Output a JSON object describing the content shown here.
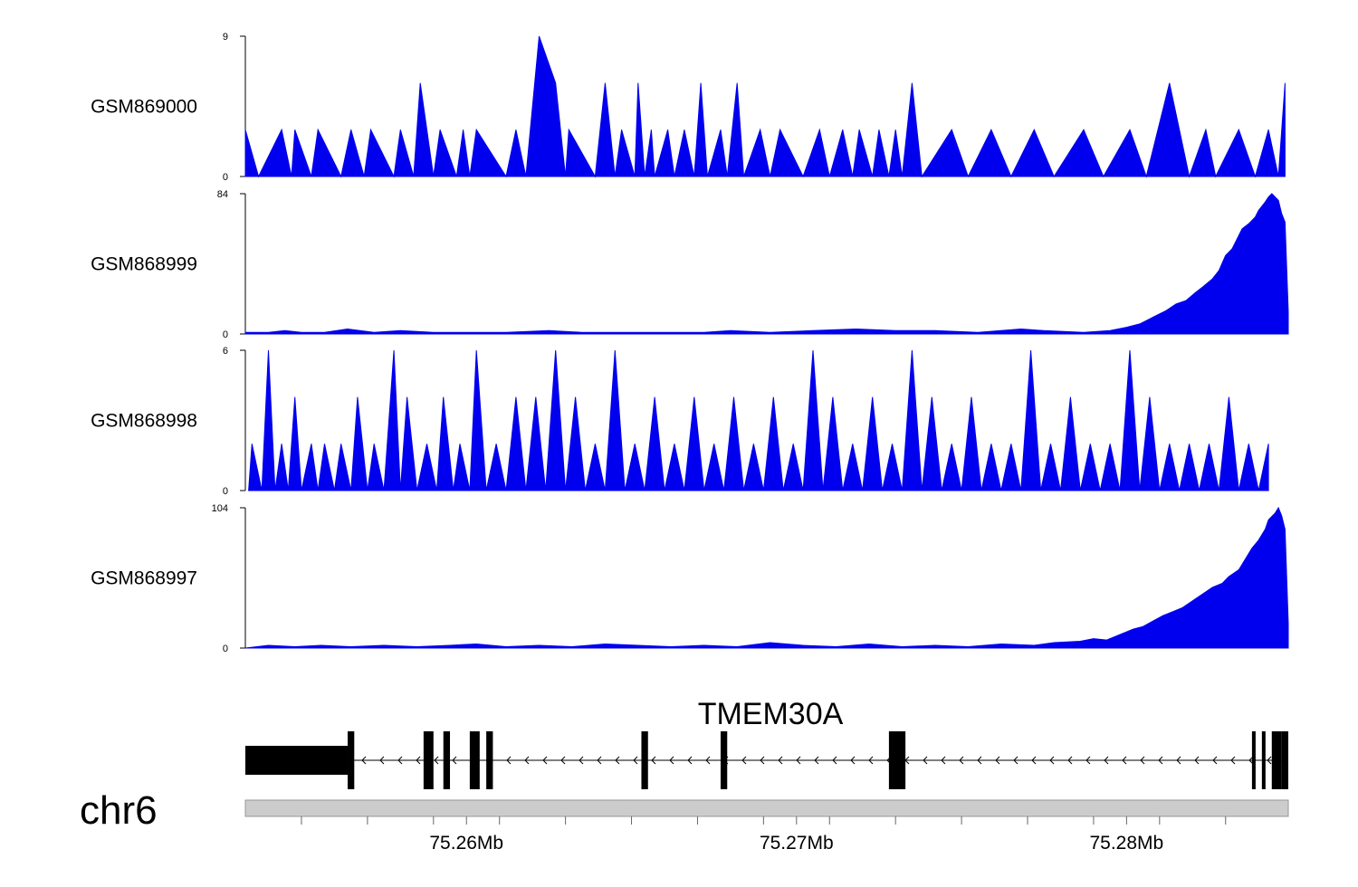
{
  "chart_data": {
    "type": "area",
    "colors": {
      "signal": "#0000ee",
      "axis": "#000000",
      "gene": "#000000",
      "ideogram": "#cccccc"
    },
    "x_axis": {
      "chromosome": "chr6",
      "range_mb": [
        75.2533,
        75.2849
      ],
      "ticks_mb": [
        75.255,
        75.257,
        75.259,
        75.261,
        75.263,
        75.265,
        75.267,
        75.269,
        75.271,
        75.273,
        75.275,
        75.277,
        75.279,
        75.281,
        75.283
      ],
      "labeled_ticks": [
        {
          "mb": 75.26,
          "label": "75.26Mb"
        },
        {
          "mb": 75.27,
          "label": "75.27Mb"
        },
        {
          "mb": 75.28,
          "label": "75.28Mb"
        }
      ]
    },
    "tracks": [
      {
        "name": "GSM869000",
        "ylim": [
          0,
          9
        ],
        "tick_labels": [
          "0",
          "9"
        ],
        "x": [
          75.2533,
          75.2533,
          75.2537,
          75.2544,
          75.2547,
          75.2548,
          75.2553,
          75.2555,
          75.2562,
          75.2565,
          75.2569,
          75.2571,
          75.2578,
          75.258,
          75.2584,
          75.2586,
          75.259,
          75.2592,
          75.2597,
          75.2599,
          75.2601,
          75.2603,
          75.2612,
          75.2615,
          75.2618,
          75.2622,
          75.2627,
          75.263,
          75.2631,
          75.2639,
          75.2642,
          75.2645,
          75.2647,
          75.2651,
          75.2652,
          75.2654,
          75.2656,
          75.2657,
          75.2661,
          75.2663,
          75.2666,
          75.2669,
          75.2671,
          75.2673,
          75.2677,
          75.2679,
          75.2682,
          75.2684,
          75.2689,
          75.2692,
          75.2695,
          75.2702,
          75.2707,
          75.271,
          75.2714,
          75.2717,
          75.2719,
          75.2723,
          75.2725,
          75.2728,
          75.273,
          75.2732,
          75.2735,
          75.2738,
          75.2747,
          75.2752,
          75.2759,
          75.2765,
          75.2772,
          75.2778,
          75.2787,
          75.2793,
          75.2801,
          75.2806,
          75.2813,
          75.2819,
          75.2824,
          75.2827,
          75.2834,
          75.2839,
          75.2843,
          75.2846,
          75.2848
        ],
        "y": [
          0,
          3,
          0,
          3,
          0,
          3,
          0,
          3,
          0,
          3,
          0,
          3,
          0,
          3,
          0,
          6,
          0,
          3,
          0,
          3,
          0,
          3,
          0,
          3,
          0,
          9,
          6,
          0,
          3,
          0,
          6,
          0,
          3,
          0,
          6,
          0,
          3,
          0,
          3,
          0,
          3,
          0,
          6,
          0,
          3,
          0,
          6,
          0,
          3,
          0,
          3,
          0,
          3,
          0,
          3,
          0,
          3,
          0,
          3,
          0,
          3,
          0,
          6,
          0,
          3,
          0,
          3,
          0,
          3,
          0,
          3,
          0,
          3,
          0,
          6,
          0,
          3,
          0,
          3,
          0,
          3,
          0,
          6
        ]
      },
      {
        "name": "GSM868999",
        "ylim": [
          0,
          84
        ],
        "tick_labels": [
          "0",
          "84"
        ],
        "x": [
          75.2533,
          75.254,
          75.2545,
          75.255,
          75.2557,
          75.2564,
          75.2572,
          75.258,
          75.259,
          75.26,
          75.2612,
          75.2625,
          75.2635,
          75.2648,
          75.266,
          75.2672,
          75.268,
          75.2692,
          75.2705,
          75.2718,
          75.273,
          75.2742,
          75.2755,
          75.2768,
          75.2775,
          75.2787,
          75.2795,
          75.28,
          75.2804,
          75.2808,
          75.2812,
          75.2815,
          75.2818,
          75.2821,
          75.2823,
          75.2826,
          75.2828,
          75.283,
          75.2832,
          75.2833,
          75.2835,
          75.2837,
          75.2839,
          75.284,
          75.2842,
          75.2843,
          75.2844,
          75.2846,
          75.2847,
          75.2848,
          75.2849
        ],
        "y": [
          1,
          1,
          2,
          1,
          1,
          3,
          1,
          2,
          1,
          1,
          1,
          2,
          1,
          1,
          1,
          1,
          2,
          1,
          2,
          3,
          2,
          2,
          1,
          3,
          2,
          1,
          2,
          4,
          6,
          10,
          14,
          18,
          20,
          25,
          28,
          33,
          38,
          47,
          51,
          55,
          63,
          66,
          70,
          74,
          79,
          82,
          84,
          80,
          72,
          67,
          13
        ]
      },
      {
        "name": "GSM868998",
        "ylim": [
          0,
          6
        ],
        "tick_labels": [
          "0",
          "6"
        ],
        "x": [
          75.2534,
          75.2535,
          75.2538,
          75.254,
          75.2542,
          75.2544,
          75.2546,
          75.2548,
          75.255,
          75.2553,
          75.2555,
          75.2557,
          75.256,
          75.2562,
          75.2565,
          75.2567,
          75.257,
          75.2572,
          75.2575,
          75.2578,
          75.258,
          75.2582,
          75.2585,
          75.2588,
          75.2591,
          75.2593,
          75.2596,
          75.2598,
          75.2601,
          75.2603,
          75.2606,
          75.2609,
          75.2612,
          75.2615,
          75.2618,
          75.2621,
          75.2624,
          75.2627,
          75.263,
          75.2633,
          75.2636,
          75.2639,
          75.2642,
          75.2645,
          75.2648,
          75.2651,
          75.2654,
          75.2657,
          75.266,
          75.2663,
          75.2666,
          75.2669,
          75.2672,
          75.2675,
          75.2678,
          75.2681,
          75.2684,
          75.2687,
          75.269,
          75.2693,
          75.2696,
          75.2699,
          75.2702,
          75.2705,
          75.2708,
          75.2711,
          75.2714,
          75.2717,
          75.272,
          75.2723,
          75.2726,
          75.2729,
          75.2732,
          75.2735,
          75.2738,
          75.2741,
          75.2744,
          75.2747,
          75.275,
          75.2753,
          75.2756,
          75.2759,
          75.2762,
          75.2765,
          75.2768,
          75.2771,
          75.2774,
          75.2777,
          75.278,
          75.2783,
          75.2786,
          75.2789,
          75.2792,
          75.2795,
          75.2798,
          75.2801,
          75.2804,
          75.2807,
          75.281,
          75.2813,
          75.2816,
          75.2819,
          75.2822,
          75.2825,
          75.2828,
          75.2831,
          75.2834,
          75.2837,
          75.284,
          75.2843
        ],
        "y": [
          0,
          2,
          0,
          6,
          0,
          2,
          0,
          4,
          0,
          2,
          0,
          2,
          0,
          2,
          0,
          4,
          0,
          2,
          0,
          6,
          0,
          4,
          0,
          2,
          0,
          4,
          0,
          2,
          0,
          6,
          0,
          2,
          0,
          4,
          0,
          4,
          0,
          6,
          0,
          4,
          0,
          2,
          0,
          6,
          0,
          2,
          0,
          4,
          0,
          2,
          0,
          4,
          0,
          2,
          0,
          4,
          0,
          2,
          0,
          4,
          0,
          2,
          0,
          6,
          0,
          4,
          0,
          2,
          0,
          4,
          0,
          2,
          0,
          6,
          0,
          4,
          0,
          2,
          0,
          4,
          0,
          2,
          0,
          2,
          0,
          6,
          0,
          2,
          0,
          4,
          0,
          2,
          0,
          2,
          0,
          6,
          0,
          4,
          0,
          2,
          0,
          2,
          0,
          2,
          0,
          4,
          0,
          2,
          0,
          2
        ]
      },
      {
        "name": "GSM868997",
        "ylim": [
          0,
          104
        ],
        "tick_labels": [
          "0",
          "104"
        ],
        "x": [
          75.2533,
          75.254,
          75.2548,
          75.2556,
          75.2565,
          75.2575,
          75.2585,
          75.2595,
          75.2603,
          75.2612,
          75.2622,
          75.2632,
          75.2642,
          75.2652,
          75.2662,
          75.2672,
          75.2682,
          75.2692,
          75.2702,
          75.2712,
          75.2722,
          75.2732,
          75.2742,
          75.2752,
          75.2762,
          75.2772,
          75.2778,
          75.2786,
          75.279,
          75.2794,
          75.2798,
          75.2802,
          75.2805,
          75.2808,
          75.2811,
          75.2814,
          75.2817,
          75.282,
          75.2823,
          75.2826,
          75.2829,
          75.2831,
          75.2834,
          75.2836,
          75.2838,
          75.284,
          75.2842,
          75.2843,
          75.2845,
          75.2846,
          75.2847,
          75.2848,
          75.2849
        ],
        "y": [
          0,
          2,
          1,
          2,
          1,
          2,
          1,
          2,
          3,
          1,
          2,
          1,
          3,
          2,
          1,
          2,
          1,
          4,
          2,
          1,
          3,
          1,
          2,
          1,
          3,
          2,
          4,
          5,
          7,
          6,
          10,
          14,
          16,
          20,
          24,
          27,
          30,
          35,
          40,
          45,
          48,
          53,
          58,
          66,
          74,
          80,
          88,
          95,
          100,
          104,
          98,
          88,
          18
        ]
      }
    ],
    "gene": {
      "name": "TMEM30A",
      "strand": "-",
      "start_mb": 75.2533,
      "end_mb": 75.2849,
      "exons_mb": [
        [
          75.2533,
          75.2564,
          "utr"
        ],
        [
          75.2564,
          75.2566,
          "cds"
        ],
        [
          75.2587,
          75.259,
          "cds"
        ],
        [
          75.2593,
          75.2595,
          "cds"
        ],
        [
          75.2601,
          75.2604,
          "cds"
        ],
        [
          75.2606,
          75.2608,
          "cds"
        ],
        [
          75.2653,
          75.2655,
          "cds"
        ],
        [
          75.2677,
          75.2679,
          "cds"
        ],
        [
          75.2728,
          75.2733,
          "cds"
        ],
        [
          75.2838,
          75.2839,
          "cds"
        ],
        [
          75.2841,
          75.2842,
          "cds"
        ],
        [
          75.2844,
          75.2847,
          "cds"
        ],
        [
          75.2847,
          75.2849,
          "cds"
        ]
      ]
    }
  }
}
